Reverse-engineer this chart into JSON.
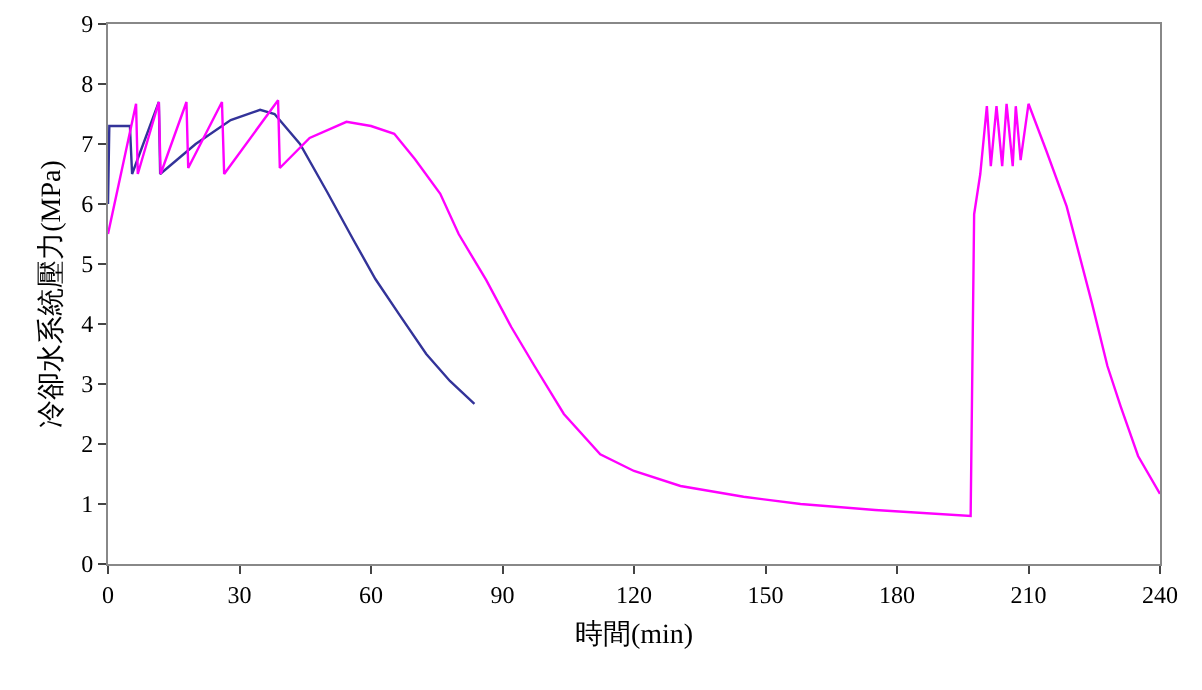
{
  "chart_data": {
    "type": "line",
    "xlabel": "時間(min)",
    "ylabel": "冷卻水系統壓力(MPa)",
    "xlim": [
      0,
      240
    ],
    "xticks": [
      0,
      30,
      60,
      90,
      120,
      150,
      180,
      210,
      240
    ],
    "ylim": [
      0,
      9
    ],
    "yticks": [
      0,
      1,
      2,
      3,
      4,
      5,
      6,
      7,
      8,
      9
    ],
    "grid": false,
    "marker": "none",
    "line_style": "solid",
    "series": [
      {
        "color": "#333399",
        "x": [
          0,
          0.3,
          5,
          5.5,
          11.6,
          11.9,
          20,
          28,
          34.7,
          38,
          43.8,
          50,
          56,
          61,
          66.7,
          72.6,
          78,
          83.6
        ],
        "values": [
          6.0,
          7.3,
          7.3,
          6.5,
          7.7,
          6.5,
          7.0,
          7.4,
          7.57,
          7.5,
          7.0,
          6.2,
          5.4,
          4.75,
          4.13,
          3.5,
          3.05,
          2.67
        ]
      },
      {
        "color": "#ff00ff",
        "x": [
          0,
          6.4,
          6.8,
          11.6,
          12,
          17.9,
          18.3,
          26,
          26.5,
          38.8,
          39.2,
          46,
          54.4,
          60,
          65.3,
          70,
          75.8,
          80,
          86.3,
          92,
          97.3,
          104,
          112.3,
          120,
          130.6,
          145,
          158,
          175,
          196.8,
          197.6,
          199,
          200.5,
          201.4,
          202.7,
          204,
          205,
          206.4,
          207.1,
          208.2,
          210,
          214,
          218.7,
          224.5,
          228,
          231,
          235,
          240
        ],
        "values": [
          5.5,
          7.67,
          6.5,
          7.7,
          6.5,
          7.7,
          6.6,
          7.7,
          6.5,
          7.73,
          6.6,
          7.1,
          7.37,
          7.3,
          7.17,
          6.75,
          6.17,
          5.5,
          4.73,
          3.95,
          3.3,
          2.5,
          1.83,
          1.55,
          1.3,
          1.12,
          1.0,
          0.9,
          0.8,
          5.83,
          6.5,
          7.63,
          6.63,
          7.63,
          6.63,
          7.67,
          6.63,
          7.63,
          6.73,
          7.67,
          6.9,
          5.96,
          4.34,
          3.3,
          2.63,
          1.8,
          1.17
        ]
      }
    ]
  }
}
